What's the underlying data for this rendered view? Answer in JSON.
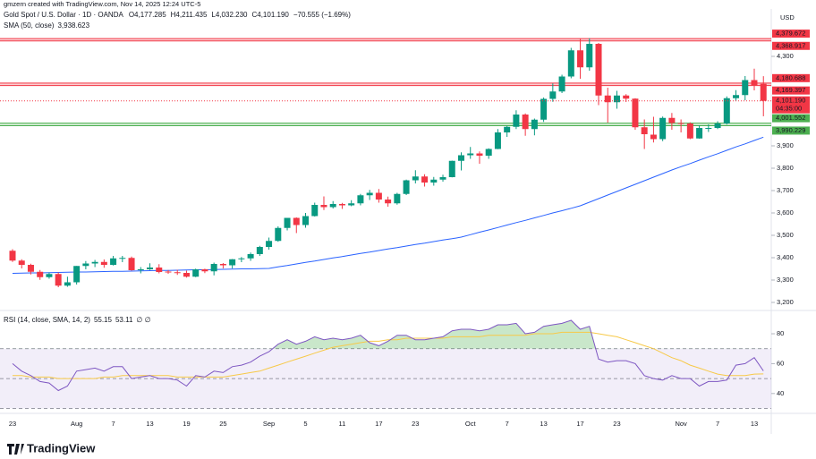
{
  "header": {
    "credit": "gmzern created with TradingView.com, Nov 14, 2025 12:24 UTC-5",
    "title": "Gold Spot / U.S. Dollar · 1D · OANDA",
    "ohlc": [
      "O4,177.285",
      "H4,211.435",
      "L4,032.230",
      "C4,101.190",
      "−70.555 (−1.69%)"
    ],
    "currency": "USD"
  },
  "footer": {
    "logo": "TradingView"
  },
  "chart_data": {
    "type": "candlestick",
    "categories": [
      "23",
      null,
      null,
      null,
      null,
      null,
      null,
      "Aug",
      null,
      null,
      null,
      "7",
      null,
      null,
      null,
      "13",
      null,
      null,
      null,
      "19",
      null,
      null,
      null,
      "25",
      null,
      null,
      null,
      null,
      "Sep",
      null,
      null,
      null,
      "5",
      null,
      null,
      null,
      "11",
      null,
      null,
      null,
      "17",
      null,
      null,
      null,
      "23",
      null,
      null,
      null,
      null,
      null,
      "Oct",
      null,
      null,
      null,
      "7",
      null,
      null,
      null,
      "13",
      null,
      null,
      null,
      "17",
      null,
      null,
      null,
      "23",
      null,
      null,
      null,
      null,
      null,
      null,
      "Nov",
      null,
      null,
      null,
      "7",
      null,
      null,
      null,
      "13",
      null
    ],
    "open": [
      3431,
      3387,
      3368,
      3337,
      3313,
      3327,
      3275,
      3290,
      3363,
      3374,
      3381,
      3368,
      3397,
      3399,
      3344,
      3348,
      3356,
      3338,
      3335,
      3332,
      3315,
      3348,
      3339,
      3372,
      3366,
      3393,
      3397,
      3416,
      3448,
      3475,
      3533,
      3578,
      3546,
      3586,
      3636,
      3626,
      3640,
      3634,
      3643,
      3679,
      3690,
      3660,
      3643,
      3685,
      3746,
      3763,
      3736,
      3749,
      3760,
      3833,
      3858,
      3866,
      3856,
      3886,
      3960,
      3985,
      4040,
      3975,
      4017,
      4110,
      4143,
      4210,
      4327,
      4251,
      4356,
      4125,
      4095,
      4125,
      4111,
      3983,
      3950,
      3930,
      4025,
      4002,
      4000,
      3933,
      3978,
      3980,
      4000,
      4113,
      4127,
      4194,
      4177.285
    ],
    "high": [
      3438,
      3393,
      3373,
      3345,
      3334,
      3334,
      3315,
      3363,
      3385,
      3390,
      3392,
      3408,
      3408,
      3405,
      3358,
      3375,
      3371,
      3345,
      3346,
      3342,
      3351,
      3351,
      3378,
      3376,
      3394,
      3403,
      3423,
      3453,
      3490,
      3540,
      3578,
      3580,
      3600,
      3646,
      3674,
      3653,
      3645,
      3657,
      3685,
      3703,
      3707,
      3673,
      3690,
      3749,
      3791,
      3773,
      3761,
      3771,
      3834,
      3871,
      3895,
      3875,
      3889,
      3975,
      3990,
      4059,
      4045,
      4022,
      4116,
      4179,
      4218,
      4338,
      4380,
      4381,
      4360,
      4160,
      4146,
      4131,
      4113,
      4018,
      4030,
      4031,
      4047,
      4018,
      4005,
      3992,
      3996,
      4010,
      4121,
      4149,
      4212,
      4245,
      4211.435
    ],
    "low": [
      3381,
      3352,
      3325,
      3301,
      3306,
      3268,
      3270,
      3280,
      3348,
      3358,
      3355,
      3365,
      3380,
      3342,
      3330,
      3345,
      3330,
      3328,
      3323,
      3311,
      3313,
      3331,
      3321,
      3352,
      3352,
      3380,
      3386,
      3408,
      3436,
      3471,
      3522,
      3510,
      3534,
      3584,
      3613,
      3620,
      3618,
      3630,
      3634,
      3658,
      3646,
      3628,
      3637,
      3680,
      3732,
      3718,
      3722,
      3740,
      3759,
      3790,
      3842,
      3820,
      3842,
      3885,
      3940,
      3975,
      3945,
      3947,
      4007,
      4097,
      4136,
      4202,
      4200,
      4236,
      4082,
      4004,
      4066,
      4096,
      3972,
      3886,
      3915,
      3921,
      3972,
      3960,
      3930,
      3932,
      3962,
      3975,
      3995,
      4101,
      4104,
      4148,
      4032.23
    ],
    "close": [
      3387,
      3368,
      3337,
      3313,
      3327,
      3275,
      3290,
      3363,
      3374,
      3381,
      3368,
      3397,
      3399,
      3344,
      3348,
      3356,
      3336,
      3336,
      3332,
      3315,
      3348,
      3339,
      3372,
      3366,
      3393,
      3397,
      3416,
      3448,
      3475,
      3533,
      3578,
      3546,
      3586,
      3636,
      3626,
      3640,
      3634,
      3643,
      3679,
      3690,
      3660,
      3643,
      3685,
      3746,
      3763,
      3736,
      3749,
      3760,
      3833,
      3858,
      3866,
      3856,
      3886,
      3960,
      3985,
      4040,
      3975,
      4017,
      4110,
      4143,
      4210,
      4327,
      4251,
      4356,
      4125,
      4095,
      4125,
      4111,
      3983,
      3952,
      3930,
      4025,
      4002,
      4000,
      3933,
      3980,
      3980,
      4000,
      4113,
      4127,
      4194,
      4171,
      4101.19
    ],
    "up_color": "#089981",
    "down_color": "#f23645",
    "ylim": [
      3164,
      4512
    ],
    "yticks": [
      {
        "value": 3200,
        "label": "3,200"
      },
      {
        "value": 3300,
        "label": "3,300"
      },
      {
        "value": 3400,
        "label": "3,400"
      },
      {
        "value": 3500,
        "label": "3,500"
      },
      {
        "value": 3600,
        "label": "3,600"
      },
      {
        "value": 3700,
        "label": "3,700"
      },
      {
        "value": 3800,
        "label": "3,800"
      },
      {
        "value": 3900,
        "label": "3,900"
      },
      {
        "value": 4300,
        "label": "4,300"
      }
    ],
    "price_label": "4,101.190",
    "countdown": "04:35:00",
    "zones": [
      {
        "top": {
          "value": 4379.672,
          "label": "4,379.672"
        },
        "bottom": {
          "value": 4368.917,
          "label": "4,368.917"
        },
        "color": "#f23645"
      },
      {
        "top": {
          "value": 4180.688,
          "label": "4,180.688"
        },
        "bottom": {
          "value": 4169.397,
          "label": "4,169.397"
        },
        "color": "#f23645"
      },
      {
        "top": {
          "value": 4001.552,
          "label": "4,001.552"
        },
        "bottom": {
          "value": 3990.229,
          "label": "3,990.229"
        },
        "color": "#4caf50"
      }
    ],
    "sma": {
      "name": "SMA (50, close)",
      "value_label": "3,938.623",
      "color": "#2962ff",
      "values": [
        3330,
        3331,
        3332,
        3332,
        3333,
        3334,
        3335,
        3336,
        3336,
        3337,
        3338,
        3339,
        3339,
        3340,
        3341,
        3342,
        3343,
        3343,
        3344,
        3345,
        3346,
        3346,
        3347,
        3348,
        3349,
        3350,
        3350,
        3351,
        3352,
        3359,
        3365,
        3372,
        3379,
        3385,
        3392,
        3399,
        3405,
        3412,
        3419,
        3425,
        3432,
        3439,
        3445,
        3452,
        3459,
        3465,
        3472,
        3479,
        3485,
        3492,
        3503,
        3514,
        3524,
        3535,
        3546,
        3557,
        3567,
        3578,
        3589,
        3600,
        3610,
        3621,
        3632,
        3648,
        3664,
        3680,
        3696,
        3712,
        3728,
        3744,
        3760,
        3776,
        3792,
        3807,
        3821,
        3836,
        3851,
        3865,
        3880,
        3895,
        3909,
        3924,
        3938.623
      ]
    },
    "rsi": {
      "name": "RSI (14, close, SMA, 14, 2)",
      "value_label": "55.15",
      "sma_label": "53.11",
      "extra": "∅ ∅",
      "color": "#7e57c2",
      "sma_color": "#f7c948",
      "ylim": [
        26.7,
        93.8
      ],
      "yticks": [
        80,
        60,
        40
      ],
      "levels": [
        70,
        50,
        30
      ],
      "values": [
        60,
        55,
        52,
        48,
        47,
        42,
        45,
        55,
        56,
        57,
        55,
        58,
        58,
        50,
        51,
        52,
        50,
        50,
        49,
        45,
        52,
        51,
        55,
        54,
        58,
        59,
        61,
        65,
        68,
        73,
        76,
        73,
        75,
        78,
        76,
        77,
        76,
        77,
        79,
        74,
        72,
        75,
        79,
        79,
        76,
        76,
        77,
        78,
        82,
        83,
        83,
        82,
        83,
        86,
        86,
        87,
        80,
        81,
        85,
        86,
        87,
        89,
        83,
        85,
        63,
        61,
        62,
        62,
        60,
        52,
        50,
        49,
        52,
        50,
        50,
        45,
        48,
        48,
        49,
        59,
        60,
        64,
        55.15
      ],
      "sma_values": [
        52,
        52,
        51,
        51,
        51,
        50,
        50,
        50,
        50,
        50,
        51,
        51,
        52,
        52,
        52,
        52,
        52,
        52,
        51,
        51,
        51,
        51,
        51,
        51,
        52,
        53,
        54,
        55,
        57,
        59,
        61,
        63,
        65,
        67,
        69,
        71,
        72,
        73,
        74,
        75,
        75,
        76,
        76,
        77,
        77,
        77,
        77,
        77,
        78,
        78,
        78,
        78,
        79,
        79,
        79,
        79,
        79,
        80,
        80,
        80,
        81,
        81,
        81,
        81,
        80,
        79,
        78,
        76,
        74,
        72,
        70,
        67,
        64,
        62,
        59,
        57,
        55,
        53,
        52,
        52,
        52,
        53,
        53.11
      ]
    }
  }
}
